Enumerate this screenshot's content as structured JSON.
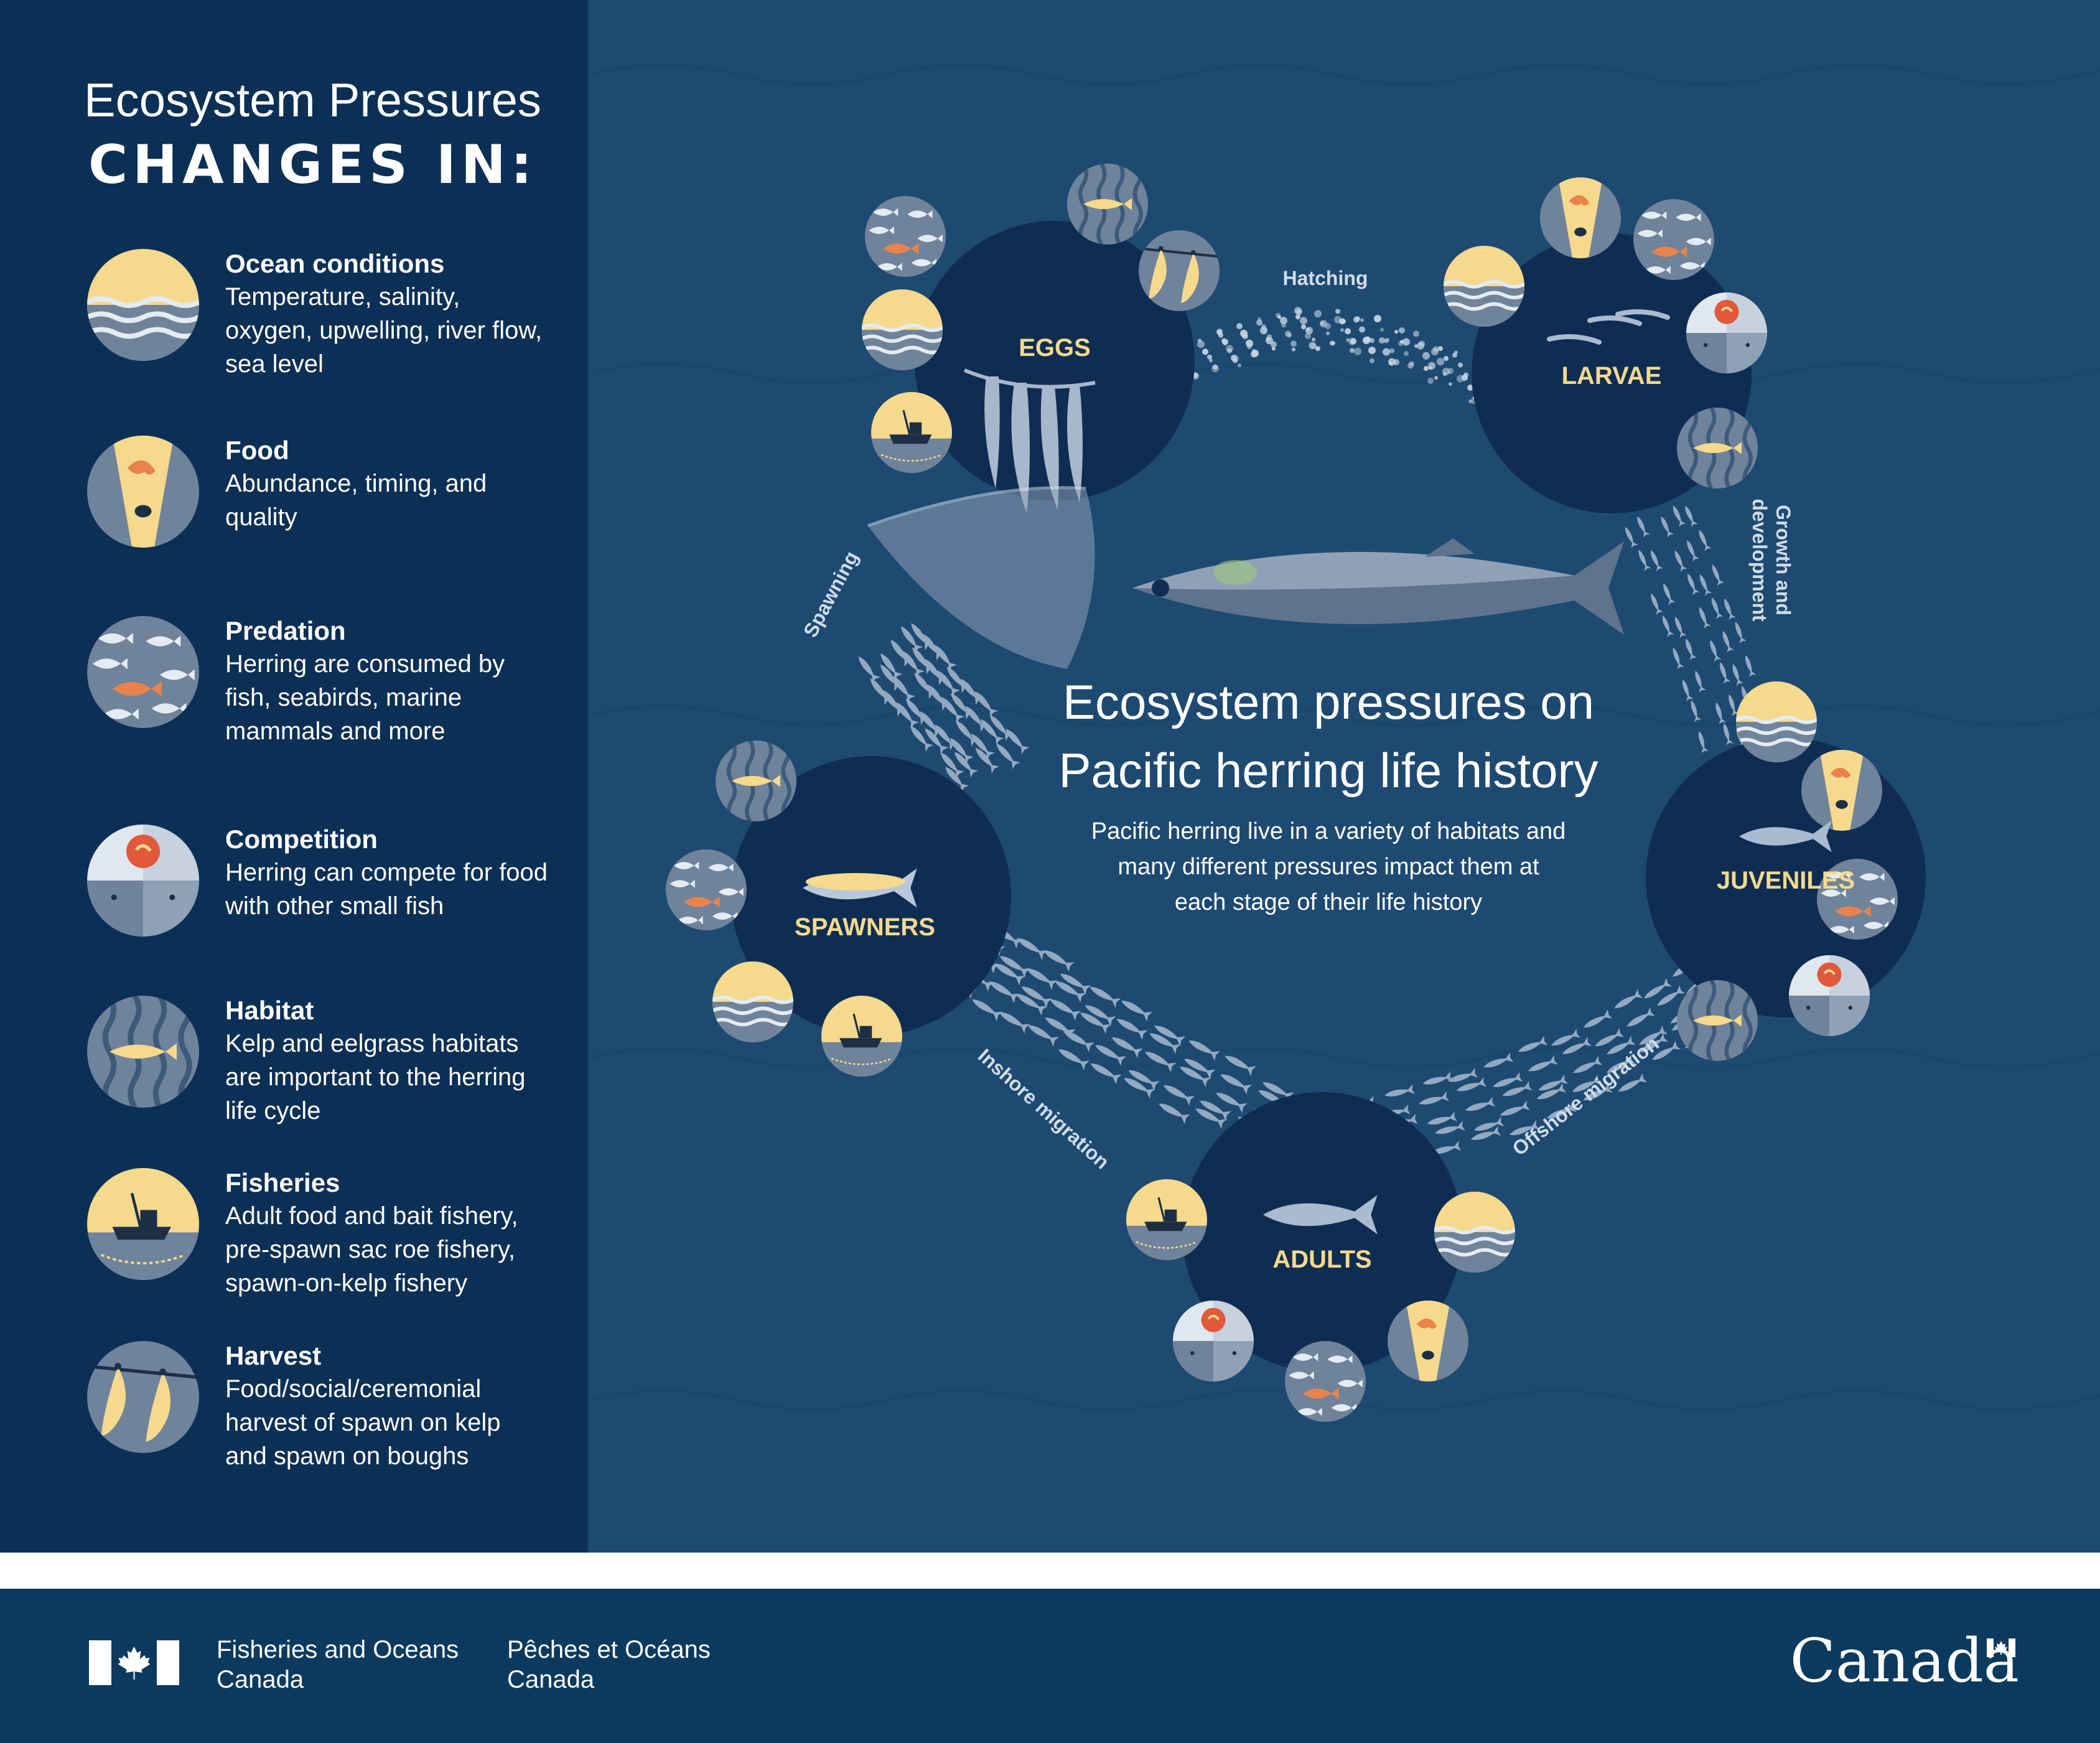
{
  "sidebar": {
    "title": "Ecosystem Pressures",
    "subtitle": "CHANGES IN:",
    "items": [
      {
        "icon": "ocean-conditions-icon",
        "name": "Ocean conditions",
        "desc": "Temperature, salinity, oxygen, upwelling, river flow, sea level"
      },
      {
        "icon": "food-icon",
        "name": "Food",
        "desc": "Abundance, timing, and quality"
      },
      {
        "icon": "predation-icon",
        "name": "Predation",
        "desc": "Herring are consumed by fish, seabirds, marine mammals and more"
      },
      {
        "icon": "competition-icon",
        "name": "Competition",
        "desc": "Herring can compete for food with other small fish"
      },
      {
        "icon": "habitat-icon",
        "name": "Habitat",
        "desc": "Kelp and eelgrass habitats are important to the herring life cycle"
      },
      {
        "icon": "fisheries-icon",
        "name": "Fisheries",
        "desc": "Adult food and bait fishery, pre-spawn sac roe fishery, spawn-on-kelp fishery"
      },
      {
        "icon": "harvest-icon",
        "name": "Harvest",
        "desc": "Food/social/ceremonial harvest of spawn on kelp and spawn on boughs"
      }
    ]
  },
  "diagram": {
    "title_line1": "Ecosystem pressures on",
    "title_line2": "Pacific herring life history",
    "desc_line1": "Pacific herring live in a variety of habitats and",
    "desc_line2": "many different pressures impact them at",
    "desc_line3": "each stage of their life history",
    "stages": {
      "eggs": "EGGS",
      "larvae": "LARVAE",
      "juveniles": "JUVENILES",
      "adults": "ADULTS",
      "spawners": "SPAWNERS"
    },
    "transitions": {
      "hatching": "Hatching",
      "growth_line1": "Growth and",
      "growth_line2": "development",
      "offshore": "Offshore migration",
      "inshore": "Inshore migration",
      "spawning": "Spawning"
    }
  },
  "footer": {
    "dept_en_line1": "Fisheries and Oceans",
    "dept_en_line2": "Canada",
    "dept_fr_line1": "Pêches et Océans",
    "dept_fr_line2": "Canada",
    "wordmark": "Canada"
  },
  "colors": {
    "sidebar_bg": "#0c2f55",
    "ocean_bg": "#1e4a72",
    "stage_circle": "#0f2d52",
    "accent_yellow": "#f5d98c",
    "accent_orange": "#e8834d",
    "icon_gray": "#6f839b"
  }
}
